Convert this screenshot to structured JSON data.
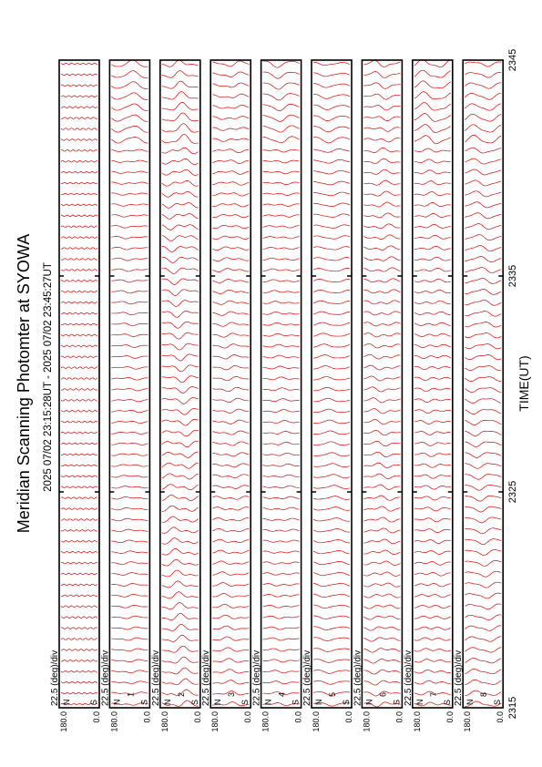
{
  "title": "Meridian Scanning Photomter at SYOWA",
  "time_range": "2025 07/02 23:15:28UT - 2025 07/02 23:45:27UT",
  "xlabel": "TIME(UT)",
  "scale_label": "22.5 (deg)/div",
  "colors": {
    "trace": "#e00000",
    "frame": "#000000"
  },
  "chart_data": {
    "type": "line",
    "title": "Meridian Scanning Photomter at SYOWA",
    "subtitle": "2025 07/02 23:15:28UT - 2025 07/02 23:45:27UT",
    "xlabel": "TIME(UT)",
    "x_ticks": [
      "2315",
      "2325",
      "2335",
      "2345"
    ],
    "xlim": [
      "2315",
      "2345"
    ],
    "y_axis": {
      "top_label": "180.0",
      "bottom_label": "0.0",
      "scale": "22.5 (deg)/div"
    },
    "traces_per_panel": 60,
    "panels": [
      {
        "channel": "",
        "labels": [
          "N",
          "S"
        ],
        "activity": 0.05
      },
      {
        "channel": "1",
        "labels": [
          "N",
          "S"
        ],
        "activity": 0.55
      },
      {
        "channel": "2",
        "labels": [
          "N",
          "S"
        ],
        "activity": 0.55
      },
      {
        "channel": "3",
        "labels": [
          "N",
          "S"
        ],
        "activity": 0.45
      },
      {
        "channel": "4",
        "labels": [
          "N",
          "S"
        ],
        "activity": 0.5
      },
      {
        "channel": "5",
        "labels": [
          "N",
          "S"
        ],
        "activity": 0.4
      },
      {
        "channel": "6",
        "labels": [
          "N",
          "S"
        ],
        "activity": 0.5
      },
      {
        "channel": "7",
        "labels": [
          "N",
          "S"
        ],
        "activity": 0.6
      },
      {
        "channel": "8",
        "labels": [
          "N",
          "S"
        ],
        "activity": 0.6
      }
    ]
  }
}
